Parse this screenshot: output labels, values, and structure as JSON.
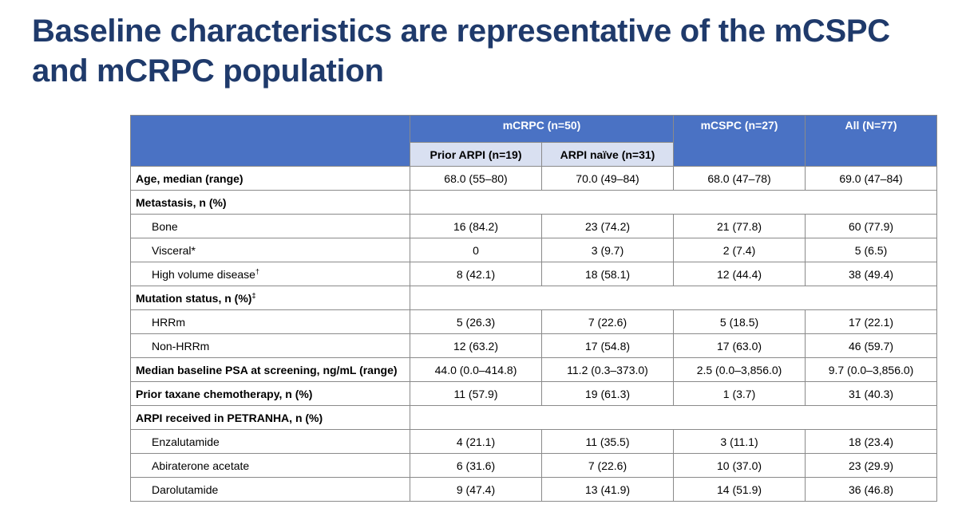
{
  "title": "Baseline characteristics are representative of the mCSPC and mCRPC population",
  "table": {
    "groups": {
      "mcrpc": "mCRPC (n=50)",
      "mcspc": "mCSPC (n=27)",
      "all": "All (N=77)"
    },
    "subheaders": {
      "prior_arpi": "Prior ARPI (n=19)",
      "arpi_naive": "ARPI naïve (n=31)"
    },
    "rows": [
      {
        "label": "Age, median (range)",
        "values": [
          "68.0 (55–80)",
          "70.0 (49–84)",
          "68.0 (47–78)",
          "69.0 (47–84)"
        ]
      },
      {
        "label": "Metastasis, n (%)"
      },
      {
        "label": "Bone",
        "values": [
          "16 (84.2)",
          "23 (74.2)",
          "21 (77.8)",
          "60 (77.9)"
        ]
      },
      {
        "label": "Visceral*",
        "values": [
          "0",
          "3 (9.7)",
          "2 (7.4)",
          "5 (6.5)"
        ]
      },
      {
        "label": "High volume disease",
        "sup": "†",
        "values": [
          "8 (42.1)",
          "18 (58.1)",
          "12 (44.4)",
          "38 (49.4)"
        ]
      },
      {
        "label": "Mutation status, n (%)",
        "sup": "‡"
      },
      {
        "label": "HRRm",
        "values": [
          "5 (26.3)",
          "7 (22.6)",
          "5 (18.5)",
          "17 (22.1)"
        ]
      },
      {
        "label": "Non-HRRm",
        "values": [
          "12 (63.2)",
          "17 (54.8)",
          "17 (63.0)",
          "46 (59.7)"
        ]
      },
      {
        "label": "Median baseline PSA at screening, ng/mL (range)",
        "values": [
          "44.0 (0.0–414.8)",
          "11.2 (0.3–373.0)",
          "2.5 (0.0–3,856.0)",
          "9.7 (0.0–3,856.0)"
        ]
      },
      {
        "label": "Prior taxane chemotherapy, n (%)",
        "values": [
          "11 (57.9)",
          "19 (61.3)",
          "1 (3.7)",
          "31 (40.3)"
        ]
      },
      {
        "label": "ARPI received in PETRANHA, n (%)"
      },
      {
        "label": "Enzalutamide",
        "values": [
          "4 (21.1)",
          "11 (35.5)",
          "3 (11.1)",
          "18 (23.4)"
        ]
      },
      {
        "label": "Abiraterone acetate",
        "values": [
          "6 (31.6)",
          "7 (22.6)",
          "10 (37.0)",
          "23 (29.9)"
        ]
      },
      {
        "label": "Darolutamide",
        "values": [
          "9 (47.4)",
          "13 (41.9)",
          "14 (51.9)",
          "36 (46.8)"
        ]
      }
    ]
  },
  "colors": {
    "title": "#1f3a6b",
    "header_bg": "#4a72c4",
    "subheader_bg": "#d9e0f1",
    "border": "#8a8a8a"
  }
}
